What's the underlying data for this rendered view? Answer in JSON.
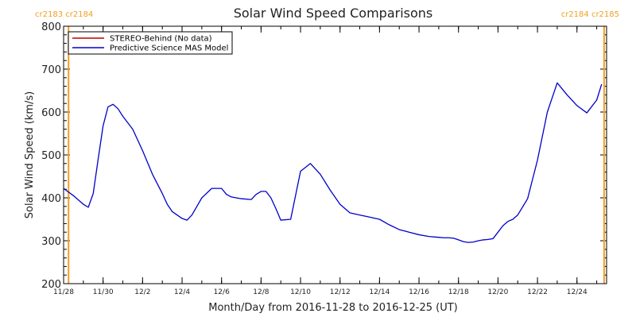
{
  "chart_data": {
    "type": "line",
    "title": "Solar Wind Speed Comparisons",
    "xlabel": "Month/Day from 2016-11-28 to 2016-12-25 (UT)",
    "ylabel": "Solar Wind Speed (km/s)",
    "xlim": [
      "2016-11-28T00:00",
      "2016-12-25T12:00"
    ],
    "ylim": [
      200,
      800
    ],
    "y_ticks": [
      200,
      300,
      400,
      500,
      600,
      700,
      800
    ],
    "x_ticks": [
      {
        "date": "2016-11-28",
        "label": "11/28"
      },
      {
        "date": "2016-11-30",
        "label": "11/30"
      },
      {
        "date": "2016-12-02",
        "label": "12/2"
      },
      {
        "date": "2016-12-04",
        "label": "12/4"
      },
      {
        "date": "2016-12-06",
        "label": "12/6"
      },
      {
        "date": "2016-12-08",
        "label": "12/8"
      },
      {
        "date": "2016-12-10",
        "label": "12/10"
      },
      {
        "date": "2016-12-12",
        "label": "12/12"
      },
      {
        "date": "2016-12-14",
        "label": "12/14"
      },
      {
        "date": "2016-12-16",
        "label": "12/16"
      },
      {
        "date": "2016-12-18",
        "label": "12/18"
      },
      {
        "date": "2016-12-20",
        "label": "12/20"
      },
      {
        "date": "2016-12-22",
        "label": "12/22"
      },
      {
        "date": "2016-12-24",
        "label": "12/24"
      }
    ],
    "legend_position": "top-left",
    "grid": false,
    "series": [
      {
        "name": "STEREO-Behind (No data)",
        "color": "#c00000",
        "x": [],
        "y": []
      },
      {
        "name": "Predictive Science MAS Model",
        "color": "#0000cc",
        "x": [
          "2016-11-28T00:00",
          "2016-11-28T12:00",
          "2016-11-29T00:00",
          "2016-11-29T06:00",
          "2016-11-29T12:00",
          "2016-11-29T18:00",
          "2016-11-30T00:00",
          "2016-11-30T06:00",
          "2016-11-30T12:00",
          "2016-11-30T18:00",
          "2016-12-01T00:00",
          "2016-12-01T12:00",
          "2016-12-02T00:00",
          "2016-12-02T12:00",
          "2016-12-03T00:00",
          "2016-12-03T06:00",
          "2016-12-03T12:00",
          "2016-12-04T00:00",
          "2016-12-04T06:00",
          "2016-12-04T12:00",
          "2016-12-05T00:00",
          "2016-12-05T12:00",
          "2016-12-06T00:00",
          "2016-12-06T06:00",
          "2016-12-06T12:00",
          "2016-12-07T00:00",
          "2016-12-07T12:00",
          "2016-12-07T18:00",
          "2016-12-08T00:00",
          "2016-12-08T06:00",
          "2016-12-08T12:00",
          "2016-12-08T18:00",
          "2016-12-09T00:00",
          "2016-12-09T12:00",
          "2016-12-10T00:00",
          "2016-12-10T12:00",
          "2016-12-11T00:00",
          "2016-12-11T12:00",
          "2016-12-12T00:00",
          "2016-12-12T12:00",
          "2016-12-13T00:00",
          "2016-12-13T12:00",
          "2016-12-14T00:00",
          "2016-12-14T12:00",
          "2016-12-15T00:00",
          "2016-12-15T12:00",
          "2016-12-16T00:00",
          "2016-12-16T12:00",
          "2016-12-17T00:00",
          "2016-12-17T06:00",
          "2016-12-17T12:00",
          "2016-12-17T18:00",
          "2016-12-18T00:00",
          "2016-12-18T06:00",
          "2016-12-18T12:00",
          "2016-12-18T18:00",
          "2016-12-19T00:00",
          "2016-12-19T06:00",
          "2016-12-19T12:00",
          "2016-12-19T18:00",
          "2016-12-20T00:00",
          "2016-12-20T06:00",
          "2016-12-20T12:00",
          "2016-12-20T18:00",
          "2016-12-21T00:00",
          "2016-12-21T12:00",
          "2016-12-22T00:00",
          "2016-12-22T12:00",
          "2016-12-23T00:00",
          "2016-12-23T12:00",
          "2016-12-24T00:00",
          "2016-12-24T12:00",
          "2016-12-25T00:00",
          "2016-12-25T06:00"
        ],
        "y": [
          422,
          405,
          385,
          378,
          410,
          490,
          568,
          612,
          618,
          608,
          590,
          560,
          510,
          455,
          410,
          385,
          368,
          352,
          348,
          360,
          400,
          422,
          422,
          408,
          402,
          398,
          396,
          408,
          415,
          415,
          400,
          375,
          348,
          350,
          462,
          480,
          455,
          418,
          385,
          365,
          360,
          355,
          350,
          337,
          326,
          320,
          314,
          310,
          308,
          307,
          307,
          306,
          302,
          298,
          296,
          297,
          300,
          302,
          303,
          305,
          320,
          335,
          345,
          350,
          360,
          398,
          488,
          600,
          668,
          640,
          615,
          598,
          628,
          665
        ]
      }
    ],
    "markers": [
      {
        "x": "2016-11-28T06:00",
        "label": "cr2183 cr2184",
        "color": "#f0a020"
      },
      {
        "x": "2016-12-25T09:00",
        "label": "cr2184 cr2185",
        "color": "#f0a020"
      }
    ]
  }
}
